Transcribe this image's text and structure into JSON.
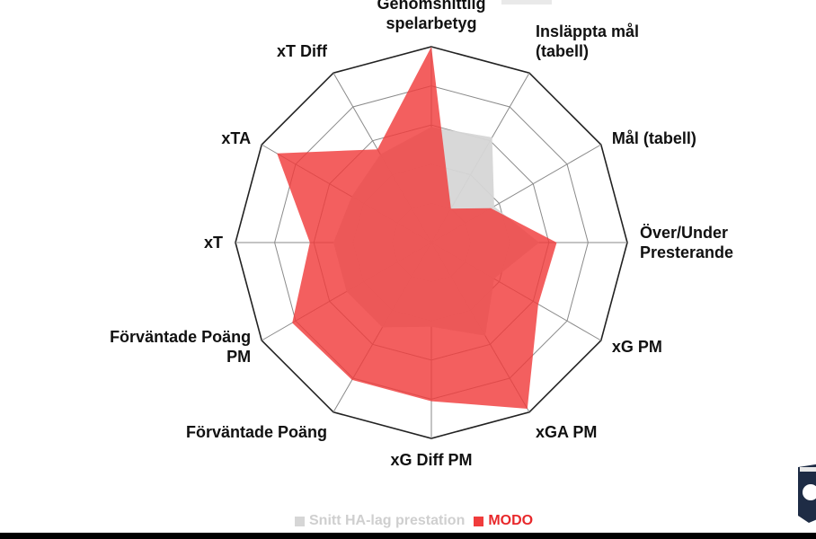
{
  "chart_data": {
    "type": "radar",
    "axes": [
      "Genomsnittlig spelarbetyg",
      "Insläppta mål (tabell)",
      "Mål (tabell)",
      "Över/Under Presterande",
      "xG PM",
      "xGA PM",
      "xG Diff PM",
      "Förväntade Poäng",
      "Förväntade Poäng PM",
      "xT",
      "xTA",
      "xT Diff"
    ],
    "axis_label_lines": [
      [
        "Genomsnittlig",
        "spelarbetyg"
      ],
      [
        "Insläppta mål",
        "(tabell)"
      ],
      [
        "Mål (tabell)"
      ],
      [
        "Över/Under",
        "Presterande"
      ],
      [
        "xG PM"
      ],
      [
        "xGA PM"
      ],
      [
        "xG Diff PM"
      ],
      [
        "Förväntade Poäng"
      ],
      [
        "Förväntade Poäng",
        "PM"
      ],
      [
        "xT"
      ],
      [
        "xTA"
      ],
      [
        "xT Diff"
      ]
    ],
    "rlim": [
      0,
      1
    ],
    "grid_rings": 5,
    "grid": true,
    "legend_position": "bottom",
    "series": [
      {
        "name": "Snitt HA-lag prestation",
        "color": "#d6d6d6",
        "values": [
          0.59,
          0.62,
          0.37,
          0.55,
          0.37,
          0.55,
          0.43,
          0.5,
          0.5,
          0.5,
          0.47,
          0.52
        ]
      },
      {
        "name": "MODO",
        "color": "#f03c3c",
        "values": [
          1.0,
          0.2,
          0.35,
          0.64,
          0.63,
          0.98,
          0.81,
          0.81,
          0.82,
          0.62,
          0.91,
          0.55
        ]
      }
    ]
  }
}
